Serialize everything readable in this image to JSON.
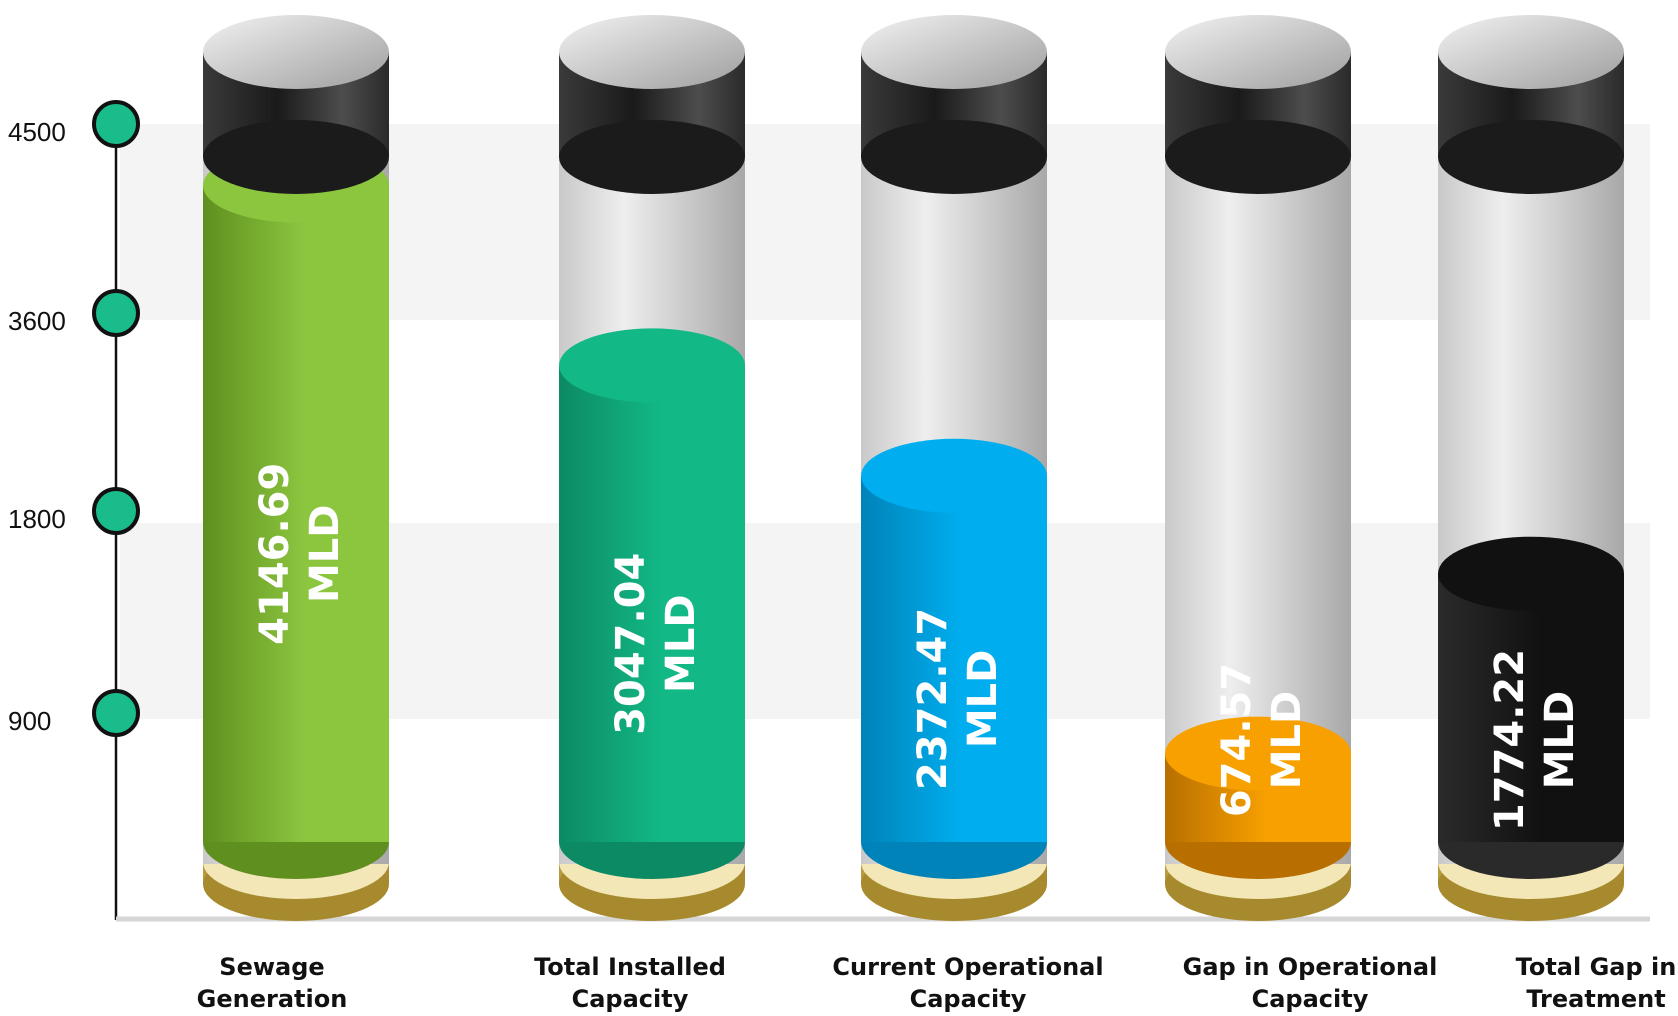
{
  "chart_data": {
    "type": "bar",
    "style": "3d-cylinder",
    "title": "",
    "xlabel": "",
    "ylabel": "",
    "unit": "MLD",
    "y_ticks": [
      900,
      1800,
      3600,
      4500
    ],
    "ylim": [
      0,
      5200
    ],
    "grid": "alternating horizontal bands",
    "legend": "none",
    "categories": [
      [
        "Sewage",
        "Generation"
      ],
      [
        "Total Installed",
        "Capacity"
      ],
      [
        "Current Operational",
        "Capacity"
      ],
      [
        "Gap in Operational",
        "Capacity"
      ],
      [
        "Total Gap in",
        "Treatment"
      ]
    ],
    "values": [
      4146.69,
      3047.04,
      2372.47,
      674.57,
      1774.22
    ],
    "value_labels": [
      "4146.69",
      "3047.04",
      "2372.47",
      "674.57",
      "1774.22"
    ],
    "colors": {
      "bars": [
        "#8cc63f",
        "#12b886",
        "#00aeef",
        "#f7a000",
        "#111111"
      ],
      "bars_dark": [
        "#5f8f1f",
        "#0c8a63",
        "#0083b8",
        "#b86f00",
        "#2a2a2a"
      ],
      "axis_marker": "#1abc8c",
      "tube": "#d8d8d8",
      "cap": "#1a1a1a",
      "base": "#c8a84a"
    }
  }
}
